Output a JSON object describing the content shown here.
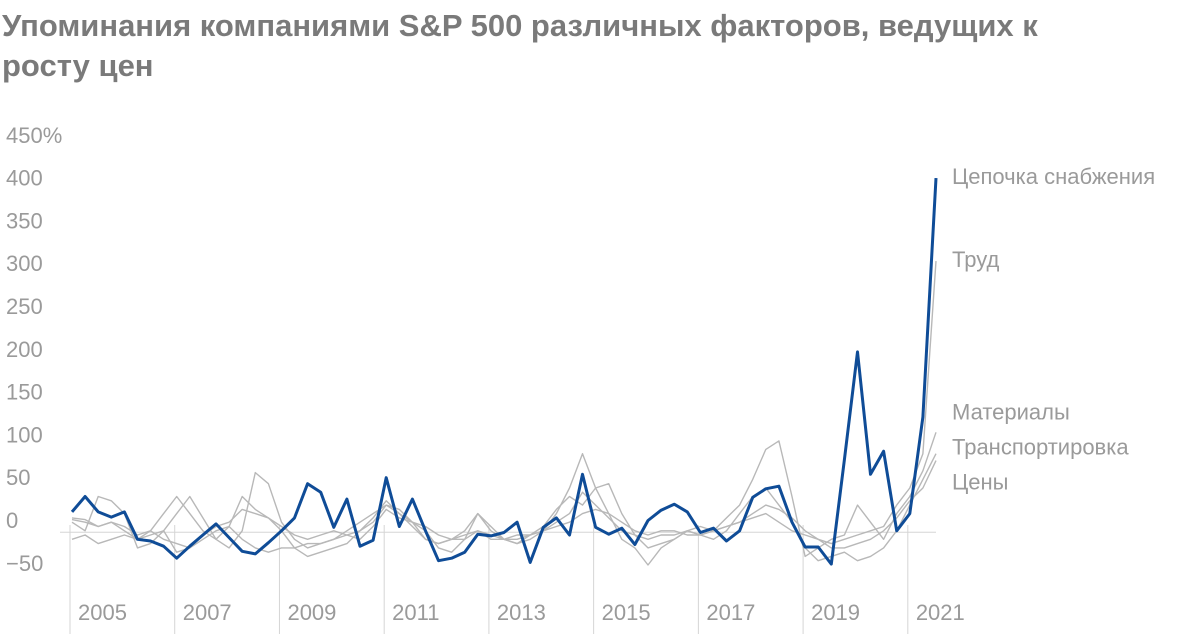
{
  "chart_data": {
    "type": "line",
    "title": "Упоминания компаниями S&P 500 различных факторов, ведущих к росту цен",
    "x": [
      2005,
      2005.25,
      2005.5,
      2005.75,
      2006,
      2006.25,
      2006.5,
      2006.75,
      2007,
      2007.25,
      2007.5,
      2007.75,
      2008,
      2008.25,
      2008.5,
      2008.75,
      2009,
      2009.25,
      2009.5,
      2009.75,
      2010,
      2010.25,
      2010.5,
      2010.75,
      2011,
      2011.25,
      2011.5,
      2011.75,
      2012,
      2012.25,
      2012.5,
      2012.75,
      2013,
      2013.25,
      2013.5,
      2013.75,
      2014,
      2014.25,
      2014.5,
      2014.75,
      2015,
      2015.25,
      2015.5,
      2015.75,
      2016,
      2016.25,
      2016.5,
      2016.75,
      2017,
      2017.25,
      2017.5,
      2017.75,
      2018,
      2018.25,
      2018.5,
      2018.75,
      2019,
      2019.25,
      2019.5,
      2019.75,
      2020,
      2020.25,
      2020.5,
      2020.75,
      2021,
      2021.25,
      2021.5
    ],
    "series": [
      {
        "name": "Цепочка снабжения",
        "color": "#0f4c97",
        "values": [
          12,
          30,
          12,
          6,
          12,
          -20,
          -22,
          -28,
          -42,
          -28,
          -15,
          -2,
          -18,
          -34,
          -37,
          -24,
          -10,
          5,
          45,
          35,
          -6,
          27,
          -28,
          -21,
          52,
          -5,
          27,
          -10,
          -45,
          -42,
          -35,
          -14,
          -16,
          -12,
          0,
          -47,
          -6,
          5,
          -15,
          56,
          -6,
          -14,
          -7,
          -26,
          2,
          14,
          21,
          12,
          -12,
          -7,
          -22,
          -10,
          29,
          39,
          42,
          0,
          -29,
          -29,
          -49,
          73,
          199,
          56,
          83,
          -10,
          10,
          123,
          402
        ]
      },
      {
        "name": "Труд",
        "color": "#b8b8b8",
        "values": [
          5,
          3,
          -5,
          0,
          -10,
          -20,
          -15,
          -10,
          -35,
          -30,
          -20,
          -10,
          -5,
          -20,
          -30,
          -35,
          -30,
          -30,
          -25,
          -25,
          -20,
          -15,
          -10,
          0,
          20,
          10,
          0,
          -20,
          -25,
          -20,
          -15,
          -10,
          -20,
          -20,
          -15,
          -15,
          -10,
          -5,
          0,
          10,
          15,
          10,
          0,
          -10,
          -15,
          -10,
          -10,
          -15,
          -15,
          -10,
          -5,
          0,
          5,
          10,
          0,
          -10,
          -15,
          -20,
          -25,
          -20,
          -15,
          -10,
          -5,
          20,
          40,
          80,
          305
        ]
      },
      {
        "name": "Материалы",
        "color": "#b8b8b8",
        "values": [
          0,
          -10,
          30,
          25,
          10,
          -30,
          -25,
          -10,
          10,
          30,
          5,
          -20,
          -30,
          -10,
          58,
          45,
          0,
          -20,
          -30,
          -25,
          -20,
          -10,
          0,
          10,
          20,
          15,
          0,
          -10,
          -30,
          -35,
          -20,
          10,
          -10,
          -20,
          -25,
          -20,
          -10,
          10,
          40,
          80,
          40,
          10,
          -20,
          -30,
          -50,
          -30,
          -20,
          -10,
          -5,
          -10,
          5,
          20,
          50,
          85,
          95,
          30,
          -40,
          -30,
          -20,
          -15,
          20,
          0,
          -20,
          10,
          30,
          60,
          105
        ]
      },
      {
        "name": "Транспортировка",
        "color": "#b8b8b8",
        "values": [
          -20,
          -15,
          -25,
          -20,
          -15,
          -20,
          -10,
          10,
          30,
          10,
          -10,
          -20,
          -5,
          30,
          15,
          5,
          -10,
          -30,
          -40,
          -35,
          -30,
          -25,
          -10,
          5,
          25,
          10,
          -5,
          -20,
          -25,
          -20,
          -10,
          10,
          -5,
          -20,
          -25,
          -15,
          -5,
          15,
          30,
          20,
          40,
          45,
          10,
          -15,
          -30,
          -25,
          -20,
          -10,
          -15,
          -20,
          -10,
          10,
          30,
          40,
          20,
          0,
          -30,
          -45,
          -40,
          -35,
          -45,
          -40,
          -30,
          -10,
          20,
          50,
          80
        ]
      },
      {
        "name": "Цены",
        "color": "#b8b8b8",
        "values": [
          3,
          0,
          -5,
          0,
          -5,
          -15,
          -10,
          -20,
          -25,
          -30,
          -15,
          -5,
          0,
          15,
          10,
          5,
          -5,
          -15,
          -20,
          -15,
          -10,
          -15,
          -20,
          -5,
          15,
          5,
          0,
          -5,
          -15,
          -20,
          -20,
          -10,
          -15,
          -20,
          -20,
          -15,
          -10,
          0,
          10,
          35,
          20,
          5,
          -10,
          -15,
          -20,
          -15,
          -15,
          -10,
          -15,
          -10,
          -5,
          0,
          10,
          20,
          15,
          5,
          -10,
          -20,
          -30,
          -30,
          -25,
          -20,
          -10,
          5,
          25,
          40,
          72
        ]
      }
    ],
    "xlim": [
      2005,
      2021.5
    ],
    "xticks": [
      2005,
      2007,
      2009,
      2011,
      2013,
      2015,
      2017,
      2019,
      2021
    ],
    "ylim": [
      -50,
      450
    ],
    "yticks": [
      {
        "value": 450,
        "label": "450%"
      },
      400,
      350,
      300,
      250,
      200,
      150,
      100,
      50,
      0,
      {
        "value": -50,
        "label": "−50"
      }
    ]
  }
}
